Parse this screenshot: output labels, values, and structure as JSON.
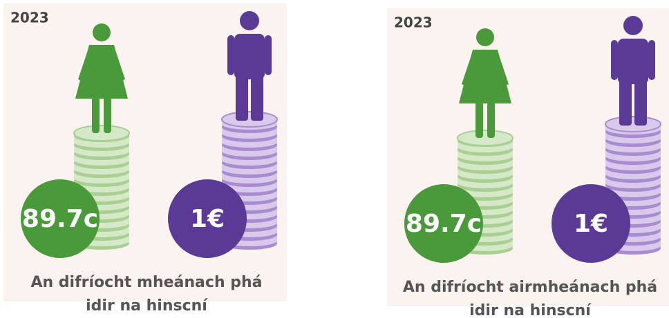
{
  "panels": [
    {
      "year": "2023",
      "women_label": "89.7c",
      "men_label": "1€",
      "caption": [
        "An difríocht mheánach phá",
        "idir na hinscní"
      ]
    },
    {
      "year": "2023",
      "women_label": "89.7c",
      "men_label": "1€",
      "caption": [
        "An difríocht airmheánach phá",
        "idir na hinscní"
      ]
    }
  ]
}
